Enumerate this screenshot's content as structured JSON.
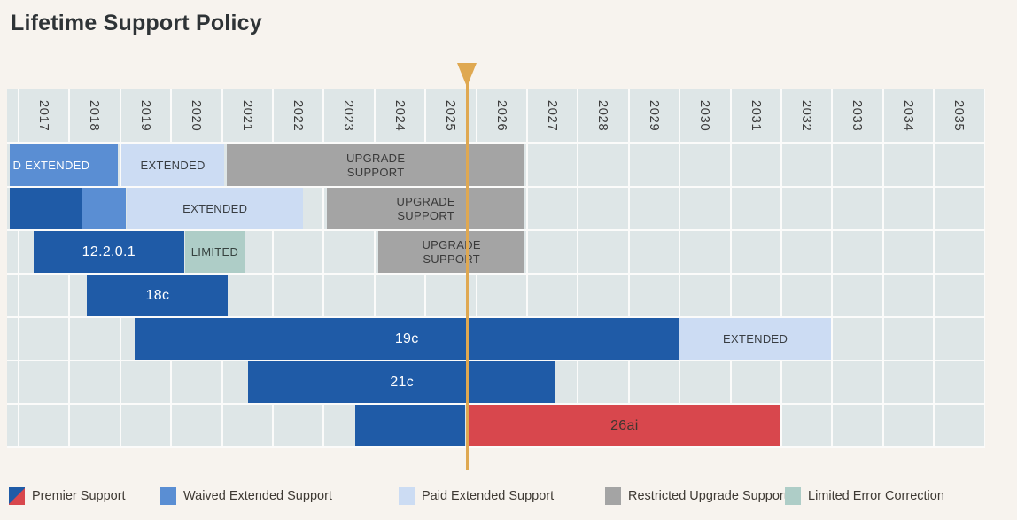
{
  "title": "Lifetime Support Policy",
  "colors": {
    "page_background": "#f7f3ee",
    "grid_cell": "#dee6e7",
    "grid_gap": "#fbfbfa",
    "premier_support_blue": "#1f5ba7",
    "premier_support_red": "#d8474d",
    "waived_extended_support": "#5a8ed3",
    "paid_extended_support": "#ccdcf3",
    "restricted_upgrade_support": "#a4a4a4",
    "limited_error_correction": "#aecdc7",
    "today_marker": "#dfa851",
    "title_text": "#2e3336"
  },
  "chart_data": {
    "type": "gantt",
    "title": "Lifetime Support Policy",
    "years": [
      2017,
      2018,
      2019,
      2020,
      2021,
      2022,
      2023,
      2024,
      2025,
      2026,
      2027,
      2028,
      2029,
      2030,
      2031,
      2032,
      2033,
      2034,
      2035
    ],
    "x_range": [
      2016.75,
      2036.0
    ],
    "today_marker_year": 2025.8,
    "grid": true,
    "legend_position": "bottom",
    "rows": [
      {
        "segments": [
          {
            "phase": "waived_extended",
            "label": "D EXTENDED",
            "start": 2016.8,
            "end": 2018.96,
            "align": "left"
          },
          {
            "phase": "paid_extended",
            "label": "EXTENDED",
            "start": 2019.0,
            "end": 2021.05
          },
          {
            "phase": "restricted_upgrade",
            "label": "UPGRADE SUPPORT",
            "start": 2021.08,
            "end": 2026.95
          }
        ]
      },
      {
        "segments": [
          {
            "phase": "premier",
            "label": "",
            "start": 2016.8,
            "end": 2018.24
          },
          {
            "phase": "waived_extended",
            "label": "",
            "start": 2018.24,
            "end": 2019.11
          },
          {
            "phase": "paid_extended",
            "label": "EXTENDED",
            "start": 2019.11,
            "end": 2022.6
          },
          {
            "phase": "restricted_upgrade",
            "label": "UPGRADE SUPPORT",
            "start": 2023.05,
            "end": 2026.95
          }
        ]
      },
      {
        "segments": [
          {
            "phase": "premier",
            "label": "12.2.0.1",
            "start": 2017.28,
            "end": 2020.25
          },
          {
            "phase": "limited_error",
            "label": "LIMITED",
            "start": 2020.25,
            "end": 2021.45
          },
          {
            "phase": "restricted_upgrade",
            "label": "UPGRADE SUPPORT",
            "start": 2024.06,
            "end": 2026.95
          }
        ]
      },
      {
        "segments": [
          {
            "phase": "premier",
            "label": "18c",
            "start": 2018.33,
            "end": 2021.12
          }
        ]
      },
      {
        "segments": [
          {
            "phase": "premier",
            "label": "19c",
            "start": 2019.27,
            "end": 2029.98
          },
          {
            "phase": "paid_extended",
            "label": "EXTENDED",
            "start": 2029.98,
            "end": 2032.98
          }
        ]
      },
      {
        "segments": [
          {
            "phase": "premier",
            "label": "21c",
            "start": 2021.5,
            "end": 2027.56
          }
        ]
      },
      {
        "segments": [
          {
            "phase": "premier",
            "label": "",
            "start": 2023.6,
            "end": 2025.78
          },
          {
            "phase": "premier_red",
            "label": "26ai",
            "start": 2025.82,
            "end": 2031.99
          }
        ]
      }
    ],
    "legend": [
      {
        "phase": "premier_split",
        "label": "Premier Support"
      },
      {
        "phase": "waived_extended",
        "label": "Waived Extended Support"
      },
      {
        "phase": "paid_extended",
        "label": "Paid Extended Support"
      },
      {
        "phase": "restricted_upgrade",
        "label": "Restricted Upgrade Support"
      },
      {
        "phase": "limited_error",
        "label": "Limited Error Correction"
      }
    ]
  }
}
